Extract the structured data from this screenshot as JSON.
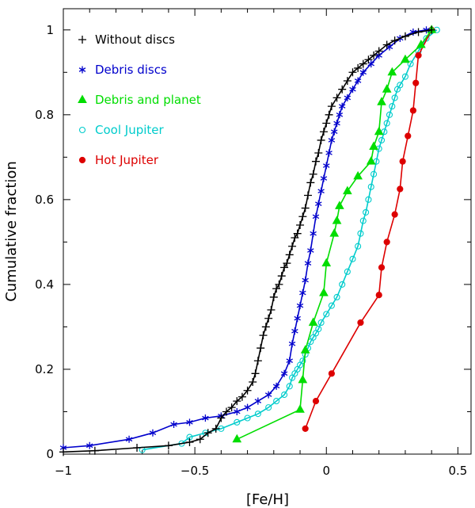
{
  "chart_data": {
    "type": "line",
    "title": "",
    "xlabel": "[Fe/H]",
    "ylabel": "Cumulative fraction",
    "xlim": [
      -1.0,
      0.55
    ],
    "ylim": [
      0.0,
      1.05
    ],
    "xticks": [
      -1,
      -0.5,
      0,
      0.5
    ],
    "xtick_labels": [
      "−1",
      "−0.5",
      "0",
      "0.5"
    ],
    "yticks": [
      0,
      0.2,
      0.4,
      0.6,
      0.8,
      1
    ],
    "ytick_labels": [
      "0",
      "0.2",
      "0.4",
      "0.6",
      "0.8",
      "1"
    ],
    "grid": false,
    "legend_position": "top-left",
    "series": [
      {
        "name": "Without discs",
        "color": "#000000",
        "marker": "plus",
        "x": [
          -1.0,
          -0.88,
          -0.72,
          -0.6,
          -0.52,
          -0.48,
          -0.45,
          -0.42,
          -0.4,
          -0.38,
          -0.36,
          -0.34,
          -0.32,
          -0.3,
          -0.28,
          -0.27,
          -0.26,
          -0.25,
          -0.24,
          -0.23,
          -0.22,
          -0.21,
          -0.2,
          -0.19,
          -0.18,
          -0.17,
          -0.16,
          -0.15,
          -0.14,
          -0.13,
          -0.12,
          -0.11,
          -0.1,
          -0.09,
          -0.08,
          -0.07,
          -0.06,
          -0.05,
          -0.04,
          -0.03,
          -0.02,
          -0.01,
          0.0,
          0.01,
          0.02,
          0.04,
          0.06,
          0.08,
          0.1,
          0.12,
          0.14,
          0.16,
          0.18,
          0.2,
          0.23,
          0.26,
          0.3,
          0.35,
          0.4
        ],
        "y": [
          0.005,
          0.008,
          0.015,
          0.02,
          0.028,
          0.035,
          0.05,
          0.06,
          0.085,
          0.1,
          0.11,
          0.125,
          0.135,
          0.15,
          0.17,
          0.19,
          0.22,
          0.25,
          0.28,
          0.3,
          0.32,
          0.34,
          0.37,
          0.39,
          0.4,
          0.42,
          0.44,
          0.45,
          0.47,
          0.49,
          0.51,
          0.52,
          0.54,
          0.56,
          0.58,
          0.61,
          0.64,
          0.66,
          0.69,
          0.71,
          0.74,
          0.76,
          0.78,
          0.8,
          0.82,
          0.84,
          0.86,
          0.88,
          0.9,
          0.91,
          0.92,
          0.93,
          0.94,
          0.95,
          0.965,
          0.975,
          0.985,
          0.995,
          1.0
        ]
      },
      {
        "name": "Debris discs",
        "color": "#0000cc",
        "marker": "asterisk",
        "x": [
          -1.0,
          -0.9,
          -0.75,
          -0.66,
          -0.58,
          -0.52,
          -0.46,
          -0.4,
          -0.34,
          -0.3,
          -0.26,
          -0.22,
          -0.19,
          -0.16,
          -0.14,
          -0.13,
          -0.12,
          -0.11,
          -0.1,
          -0.09,
          -0.08,
          -0.07,
          -0.06,
          -0.05,
          -0.04,
          -0.03,
          -0.02,
          -0.01,
          0.0,
          0.01,
          0.02,
          0.03,
          0.04,
          0.05,
          0.06,
          0.08,
          0.1,
          0.12,
          0.14,
          0.17,
          0.2,
          0.24,
          0.28,
          0.33,
          0.38
        ],
        "y": [
          0.015,
          0.02,
          0.035,
          0.05,
          0.07,
          0.075,
          0.085,
          0.09,
          0.1,
          0.11,
          0.125,
          0.14,
          0.16,
          0.19,
          0.22,
          0.26,
          0.29,
          0.32,
          0.35,
          0.38,
          0.41,
          0.45,
          0.48,
          0.52,
          0.56,
          0.59,
          0.62,
          0.65,
          0.68,
          0.71,
          0.74,
          0.76,
          0.78,
          0.8,
          0.82,
          0.84,
          0.86,
          0.88,
          0.9,
          0.92,
          0.94,
          0.96,
          0.98,
          0.995,
          1.0
        ]
      },
      {
        "name": "Debris and planet",
        "color": "#00dd00",
        "marker": "triangle",
        "x": [
          -0.34,
          -0.1,
          -0.09,
          -0.08,
          -0.05,
          -0.01,
          0.0,
          0.03,
          0.04,
          0.05,
          0.08,
          0.12,
          0.17,
          0.18,
          0.2,
          0.21,
          0.23,
          0.25,
          0.3,
          0.36,
          0.4
        ],
        "y": [
          0.035,
          0.105,
          0.175,
          0.245,
          0.31,
          0.38,
          0.45,
          0.52,
          0.55,
          0.585,
          0.62,
          0.655,
          0.69,
          0.725,
          0.76,
          0.83,
          0.86,
          0.9,
          0.93,
          0.965,
          1.0
        ]
      },
      {
        "name": "Cool Jupiter",
        "color": "#00cccc",
        "marker": "circle",
        "x": [
          -0.7,
          -0.55,
          -0.52,
          -0.46,
          -0.4,
          -0.34,
          -0.3,
          -0.26,
          -0.22,
          -0.19,
          -0.16,
          -0.14,
          -0.13,
          -0.12,
          -0.11,
          -0.1,
          -0.09,
          -0.08,
          -0.07,
          -0.06,
          -0.05,
          -0.04,
          -0.03,
          -0.02,
          0.0,
          0.02,
          0.04,
          0.06,
          0.08,
          0.1,
          0.12,
          0.13,
          0.14,
          0.15,
          0.16,
          0.17,
          0.18,
          0.19,
          0.2,
          0.21,
          0.22,
          0.23,
          0.24,
          0.25,
          0.26,
          0.27,
          0.28,
          0.3,
          0.32,
          0.35,
          0.38,
          0.42
        ],
        "y": [
          0.01,
          0.025,
          0.04,
          0.05,
          0.06,
          0.075,
          0.085,
          0.095,
          0.11,
          0.125,
          0.14,
          0.16,
          0.18,
          0.19,
          0.2,
          0.21,
          0.22,
          0.235,
          0.25,
          0.265,
          0.275,
          0.285,
          0.295,
          0.31,
          0.33,
          0.35,
          0.37,
          0.4,
          0.43,
          0.46,
          0.49,
          0.52,
          0.55,
          0.57,
          0.6,
          0.63,
          0.66,
          0.69,
          0.72,
          0.74,
          0.76,
          0.78,
          0.8,
          0.82,
          0.84,
          0.86,
          0.87,
          0.89,
          0.92,
          0.95,
          0.98,
          1.0
        ]
      },
      {
        "name": "Hot Jupiter",
        "color": "#dd0000",
        "marker": "filled-circle",
        "x": [
          -0.08,
          -0.04,
          0.02,
          0.13,
          0.2,
          0.21,
          0.23,
          0.26,
          0.28,
          0.29,
          0.31,
          0.33,
          0.34,
          0.35,
          0.4
        ],
        "y": [
          0.06,
          0.125,
          0.19,
          0.31,
          0.375,
          0.44,
          0.5,
          0.565,
          0.625,
          0.69,
          0.75,
          0.81,
          0.875,
          0.94,
          1.0
        ]
      }
    ]
  }
}
